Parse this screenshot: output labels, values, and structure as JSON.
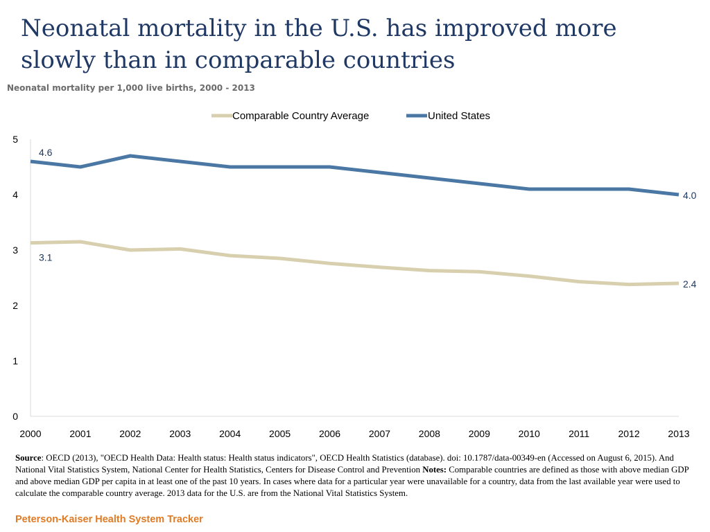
{
  "title": "Neonatal mortality in the U.S. has improved more slowly than in comparable countries",
  "subtitle": "Neonatal mortality per 1,000 live births, 2000 - 2013",
  "chart_data": {
    "type": "line",
    "title": "Neonatal mortality in the U.S. has improved more slowly than in comparable countries",
    "subtitle": "Neonatal mortality per 1,000 live births, 2000 - 2013",
    "xlabel": "",
    "ylabel": "",
    "x": [
      "2000",
      "2001",
      "2002",
      "2003",
      "2004",
      "2005",
      "2006",
      "2007",
      "2008",
      "2009",
      "2010",
      "2011",
      "2012",
      "2013"
    ],
    "ylim": [
      0,
      5
    ],
    "yticks": [
      "0",
      "1",
      "2",
      "3",
      "4",
      "5"
    ],
    "grid": false,
    "legend_position": "top-center",
    "series": [
      {
        "name": "Comparable Country Average",
        "color": "#d8cfae",
        "values": [
          3.13,
          3.15,
          3.0,
          3.02,
          2.9,
          2.85,
          2.76,
          2.69,
          2.63,
          2.61,
          2.53,
          2.43,
          2.38,
          2.4
        ],
        "labels": [
          {
            "index": 0,
            "text": "3.1"
          },
          {
            "index": 13,
            "text": "2.4"
          }
        ]
      },
      {
        "name": "United States",
        "color": "#4a77a3",
        "values": [
          4.6,
          4.5,
          4.7,
          4.6,
          4.5,
          4.5,
          4.5,
          4.4,
          4.3,
          4.2,
          4.1,
          4.1,
          4.1,
          4.0
        ],
        "labels": [
          {
            "index": 0,
            "text": "4.6"
          },
          {
            "index": 13,
            "text": "4.0"
          }
        ]
      }
    ]
  },
  "footnote": {
    "source_label": "Source",
    "source_text": ": OECD (2013), \"OECD Health Data: Health status: Health status indicators\", OECD Health Statistics (database). doi: 10.1787/data-00349-en (Accessed on August 6, 2015). And National Vital Statistics System, National Center for Health Statistics, Centers for Disease Control and Prevention ",
    "notes_label": "Notes:",
    "notes_text": " Comparable countries are defined as those with above median GDP and above median GDP per capita in at least one of the past 10 years. In cases where data for a particular year were unavailable for a country, data from the last available year were used to calculate the comparable country average. 2013 data for the U.S. are from the National Vital Statistics System."
  },
  "brand": "Peterson-Kaiser Health System Tracker"
}
